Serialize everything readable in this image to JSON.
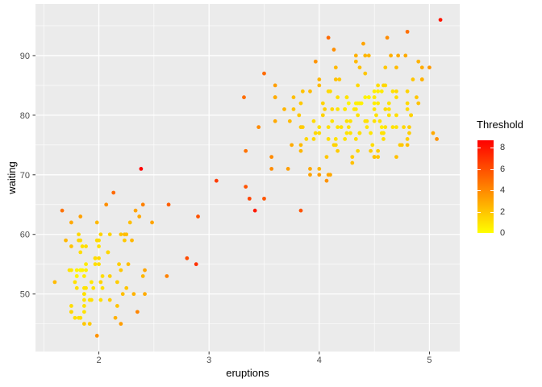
{
  "chart_data": {
    "type": "scatter",
    "xlabel": "eruptions",
    "ylabel": "waiting",
    "xlim": [
      1.425,
      5.275
    ],
    "ylim": [
      40.35,
      98.65
    ],
    "x_ticks": [
      2,
      3,
      4,
      5
    ],
    "y_ticks": [
      50,
      60,
      70,
      80,
      90
    ],
    "x_minor_ticks": [
      1.5,
      2.5,
      3.5,
      4.5
    ],
    "y_minor_ticks": [
      45,
      55,
      65,
      75,
      85,
      95
    ],
    "grid": true,
    "theme": {
      "panel_bg": "#EBEBEB",
      "grid_major_color": "#FFFFFF",
      "grid_minor_color": "#FFFFFF",
      "tick_mark_color": "#333333",
      "tick_label_color": "#4D4D4D",
      "axis_title_color": "#000000",
      "point_radius": 2.4
    },
    "legend": {
      "title": "Threshold",
      "position": "right",
      "ticks": [
        0,
        2,
        4,
        6,
        8
      ],
      "min": 0,
      "max": 8.7,
      "low_color": "#FFFF00",
      "high_color": "#FF0000"
    },
    "color_model": {
      "type": "knn-distance",
      "k": 10,
      "sd_x": 1.141,
      "sd_y": 13.595,
      "baseline_frac": 0.1
    },
    "points": [
      [
        3.6,
        79
      ],
      [
        1.8,
        54
      ],
      [
        3.333,
        74
      ],
      [
        2.283,
        62
      ],
      [
        4.533,
        85
      ],
      [
        2.883,
        55
      ],
      [
        4.7,
        88
      ],
      [
        3.6,
        85
      ],
      [
        1.95,
        51
      ],
      [
        4.35,
        85
      ],
      [
        1.833,
        54
      ],
      [
        3.917,
        84
      ],
      [
        4.2,
        78
      ],
      [
        1.75,
        47
      ],
      [
        4.7,
        83
      ],
      [
        2.167,
        52
      ],
      [
        1.75,
        62
      ],
      [
        4.8,
        84
      ],
      [
        1.6,
        52
      ],
      [
        4.25,
        79
      ],
      [
        1.8,
        51
      ],
      [
        1.75,
        47
      ],
      [
        3.45,
        78
      ],
      [
        3.067,
        69
      ],
      [
        4.533,
        74
      ],
      [
        3.6,
        83
      ],
      [
        1.967,
        55
      ],
      [
        4.083,
        76
      ],
      [
        3.85,
        78
      ],
      [
        4.433,
        79
      ],
      [
        4.3,
        73
      ],
      [
        4.467,
        77
      ],
      [
        3.367,
        66
      ],
      [
        4.033,
        80
      ],
      [
        3.833,
        74
      ],
      [
        2.017,
        52
      ],
      [
        1.867,
        48
      ],
      [
        4.833,
        80
      ],
      [
        1.833,
        59
      ],
      [
        4.783,
        90
      ],
      [
        4.35,
        80
      ],
      [
        1.883,
        58
      ],
      [
        4.567,
        84
      ],
      [
        1.75,
        58
      ],
      [
        4.533,
        73
      ],
      [
        3.317,
        83
      ],
      [
        3.833,
        64
      ],
      [
        2.1,
        53
      ],
      [
        4.633,
        82
      ],
      [
        2.0,
        59
      ],
      [
        4.8,
        75
      ],
      [
        4.716,
        90
      ],
      [
        1.833,
        54
      ],
      [
        4.833,
        80
      ],
      [
        1.733,
        54
      ],
      [
        4.883,
        83
      ],
      [
        3.717,
        71
      ],
      [
        1.667,
        64
      ],
      [
        4.567,
        77
      ],
      [
        4.317,
        81
      ],
      [
        2.233,
        59
      ],
      [
        4.5,
        84
      ],
      [
        1.75,
        48
      ],
      [
        4.8,
        82
      ],
      [
        1.817,
        60
      ],
      [
        4.4,
        92
      ],
      [
        4.167,
        78
      ],
      [
        4.7,
        78
      ],
      [
        2.067,
        65
      ],
      [
        4.7,
        73
      ],
      [
        4.033,
        82
      ],
      [
        1.967,
        56
      ],
      [
        4.5,
        79
      ],
      [
        4.0,
        71
      ],
      [
        1.983,
        62
      ],
      [
        5.067,
        76
      ],
      [
        2.017,
        60
      ],
      [
        4.567,
        78
      ],
      [
        3.883,
        76
      ],
      [
        3.6,
        83
      ],
      [
        4.133,
        75
      ],
      [
        4.333,
        82
      ],
      [
        4.1,
        70
      ],
      [
        2.633,
        65
      ],
      [
        4.067,
        73
      ],
      [
        4.933,
        88
      ],
      [
        3.95,
        76
      ],
      [
        4.517,
        80
      ],
      [
        2.167,
        48
      ],
      [
        4.0,
        86
      ],
      [
        2.2,
        60
      ],
      [
        4.333,
        90
      ],
      [
        1.867,
        50
      ],
      [
        4.817,
        78
      ],
      [
        1.833,
        63
      ],
      [
        4.3,
        72
      ],
      [
        4.667,
        84
      ],
      [
        3.75,
        75
      ],
      [
        1.867,
        51
      ],
      [
        4.9,
        82
      ],
      [
        2.483,
        62
      ],
      [
        4.367,
        88
      ],
      [
        2.1,
        49
      ],
      [
        4.5,
        83
      ],
      [
        4.05,
        81
      ],
      [
        1.867,
        47
      ],
      [
        4.7,
        84
      ],
      [
        1.783,
        52
      ],
      [
        4.85,
        86
      ],
      [
        3.683,
        81
      ],
      [
        4.733,
        75
      ],
      [
        2.3,
        59
      ],
      [
        4.9,
        89
      ],
      [
        4.417,
        79
      ],
      [
        1.7,
        59
      ],
      [
        4.633,
        81
      ],
      [
        2.317,
        50
      ],
      [
        4.6,
        85
      ],
      [
        1.817,
        59
      ],
      [
        4.417,
        87
      ],
      [
        2.617,
        53
      ],
      [
        4.067,
        69
      ],
      [
        4.25,
        77
      ],
      [
        1.967,
        56
      ],
      [
        4.6,
        88
      ],
      [
        3.767,
        81
      ],
      [
        1.917,
        45
      ],
      [
        4.5,
        82
      ],
      [
        2.267,
        55
      ],
      [
        4.65,
        90
      ],
      [
        1.867,
        45
      ],
      [
        4.167,
        83
      ],
      [
        2.8,
        56
      ],
      [
        4.333,
        89
      ],
      [
        1.833,
        46
      ],
      [
        4.383,
        82
      ],
      [
        1.883,
        51
      ],
      [
        4.933,
        86
      ],
      [
        2.033,
        53
      ],
      [
        3.733,
        79
      ],
      [
        4.233,
        81
      ],
      [
        2.233,
        60
      ],
      [
        4.533,
        82
      ],
      [
        4.817,
        77
      ],
      [
        4.333,
        76
      ],
      [
        1.983,
        59
      ],
      [
        4.633,
        80
      ],
      [
        2.017,
        49
      ],
      [
        5.1,
        96
      ],
      [
        1.8,
        53
      ],
      [
        5.033,
        77
      ],
      [
        4.0,
        77
      ],
      [
        2.4,
        65
      ],
      [
        4.6,
        81
      ],
      [
        3.567,
        71
      ],
      [
        4.0,
        70
      ],
      [
        4.5,
        81
      ],
      [
        4.083,
        93
      ],
      [
        1.8,
        53
      ],
      [
        3.967,
        89
      ],
      [
        2.2,
        45
      ],
      [
        4.15,
        86
      ],
      [
        2.0,
        58
      ],
      [
        3.833,
        78
      ],
      [
        3.5,
        66
      ],
      [
        4.583,
        76
      ],
      [
        2.367,
        63
      ],
      [
        5.0,
        88
      ],
      [
        1.933,
        52
      ],
      [
        4.617,
        93
      ],
      [
        1.917,
        49
      ],
      [
        2.083,
        57
      ],
      [
        4.583,
        77
      ],
      [
        3.333,
        68
      ],
      [
        4.167,
        81
      ],
      [
        4.333,
        81
      ],
      [
        4.5,
        73
      ],
      [
        2.417,
        50
      ],
      [
        4.0,
        85
      ],
      [
        4.167,
        74
      ],
      [
        1.883,
        55
      ],
      [
        4.583,
        77
      ],
      [
        4.25,
        83
      ],
      [
        3.767,
        83
      ],
      [
        2.033,
        51
      ],
      [
        4.433,
        78
      ],
      [
        4.083,
        84
      ],
      [
        1.833,
        46
      ],
      [
        4.417,
        83
      ],
      [
        2.183,
        55
      ],
      [
        4.8,
        81
      ],
      [
        1.833,
        57
      ],
      [
        4.8,
        76
      ],
      [
        4.1,
        84
      ],
      [
        3.966,
        77
      ],
      [
        4.233,
        81
      ],
      [
        3.5,
        87
      ],
      [
        4.366,
        77
      ],
      [
        2.25,
        51
      ],
      [
        4.667,
        78
      ],
      [
        2.1,
        60
      ],
      [
        4.35,
        82
      ],
      [
        4.133,
        91
      ],
      [
        1.867,
        53
      ],
      [
        4.6,
        78
      ],
      [
        1.783,
        46
      ],
      [
        4.367,
        77
      ],
      [
        3.85,
        84
      ],
      [
        1.933,
        49
      ],
      [
        4.5,
        83
      ],
      [
        2.383,
        71
      ],
      [
        4.7,
        80
      ],
      [
        1.867,
        49
      ],
      [
        3.833,
        75
      ],
      [
        3.417,
        64
      ],
      [
        4.233,
        76
      ],
      [
        2.4,
        53
      ],
      [
        4.8,
        94
      ],
      [
        2.0,
        55
      ],
      [
        4.15,
        76
      ],
      [
        1.867,
        50
      ],
      [
        4.267,
        82
      ],
      [
        1.75,
        54
      ],
      [
        4.483,
        75
      ],
      [
        4.0,
        78
      ],
      [
        4.117,
        79
      ],
      [
        4.083,
        78
      ],
      [
        4.267,
        78
      ],
      [
        3.917,
        70
      ],
      [
        4.55,
        79
      ],
      [
        4.083,
        70
      ],
      [
        2.417,
        54
      ],
      [
        4.183,
        86
      ],
      [
        2.217,
        50
      ],
      [
        4.45,
        90
      ],
      [
        1.883,
        54
      ],
      [
        1.85,
        54
      ],
      [
        4.283,
        77
      ],
      [
        3.95,
        79
      ],
      [
        2.333,
        64
      ],
      [
        4.15,
        75
      ],
      [
        2.35,
        47
      ],
      [
        4.933,
        86
      ],
      [
        2.9,
        63
      ],
      [
        4.583,
        85
      ],
      [
        3.833,
        82
      ],
      [
        2.083,
        57
      ],
      [
        4.367,
        82
      ],
      [
        2.133,
        67
      ],
      [
        4.35,
        74
      ],
      [
        2.2,
        54
      ],
      [
        4.45,
        83
      ],
      [
        3.567,
        73
      ],
      [
        4.5,
        73
      ],
      [
        4.15,
        88
      ],
      [
        3.817,
        80
      ],
      [
        3.917,
        71
      ],
      [
        4.45,
        83
      ],
      [
        2.0,
        56
      ],
      [
        4.283,
        79
      ],
      [
        4.767,
        78
      ],
      [
        4.533,
        84
      ],
      [
        1.85,
        58
      ],
      [
        4.25,
        83
      ],
      [
        1.983,
        43
      ],
      [
        2.25,
        60
      ],
      [
        4.75,
        75
      ],
      [
        4.117,
        81
      ],
      [
        2.15,
        46
      ],
      [
        4.417,
        90
      ],
      [
        1.817,
        46
      ],
      [
        4.467,
        74
      ]
    ]
  }
}
